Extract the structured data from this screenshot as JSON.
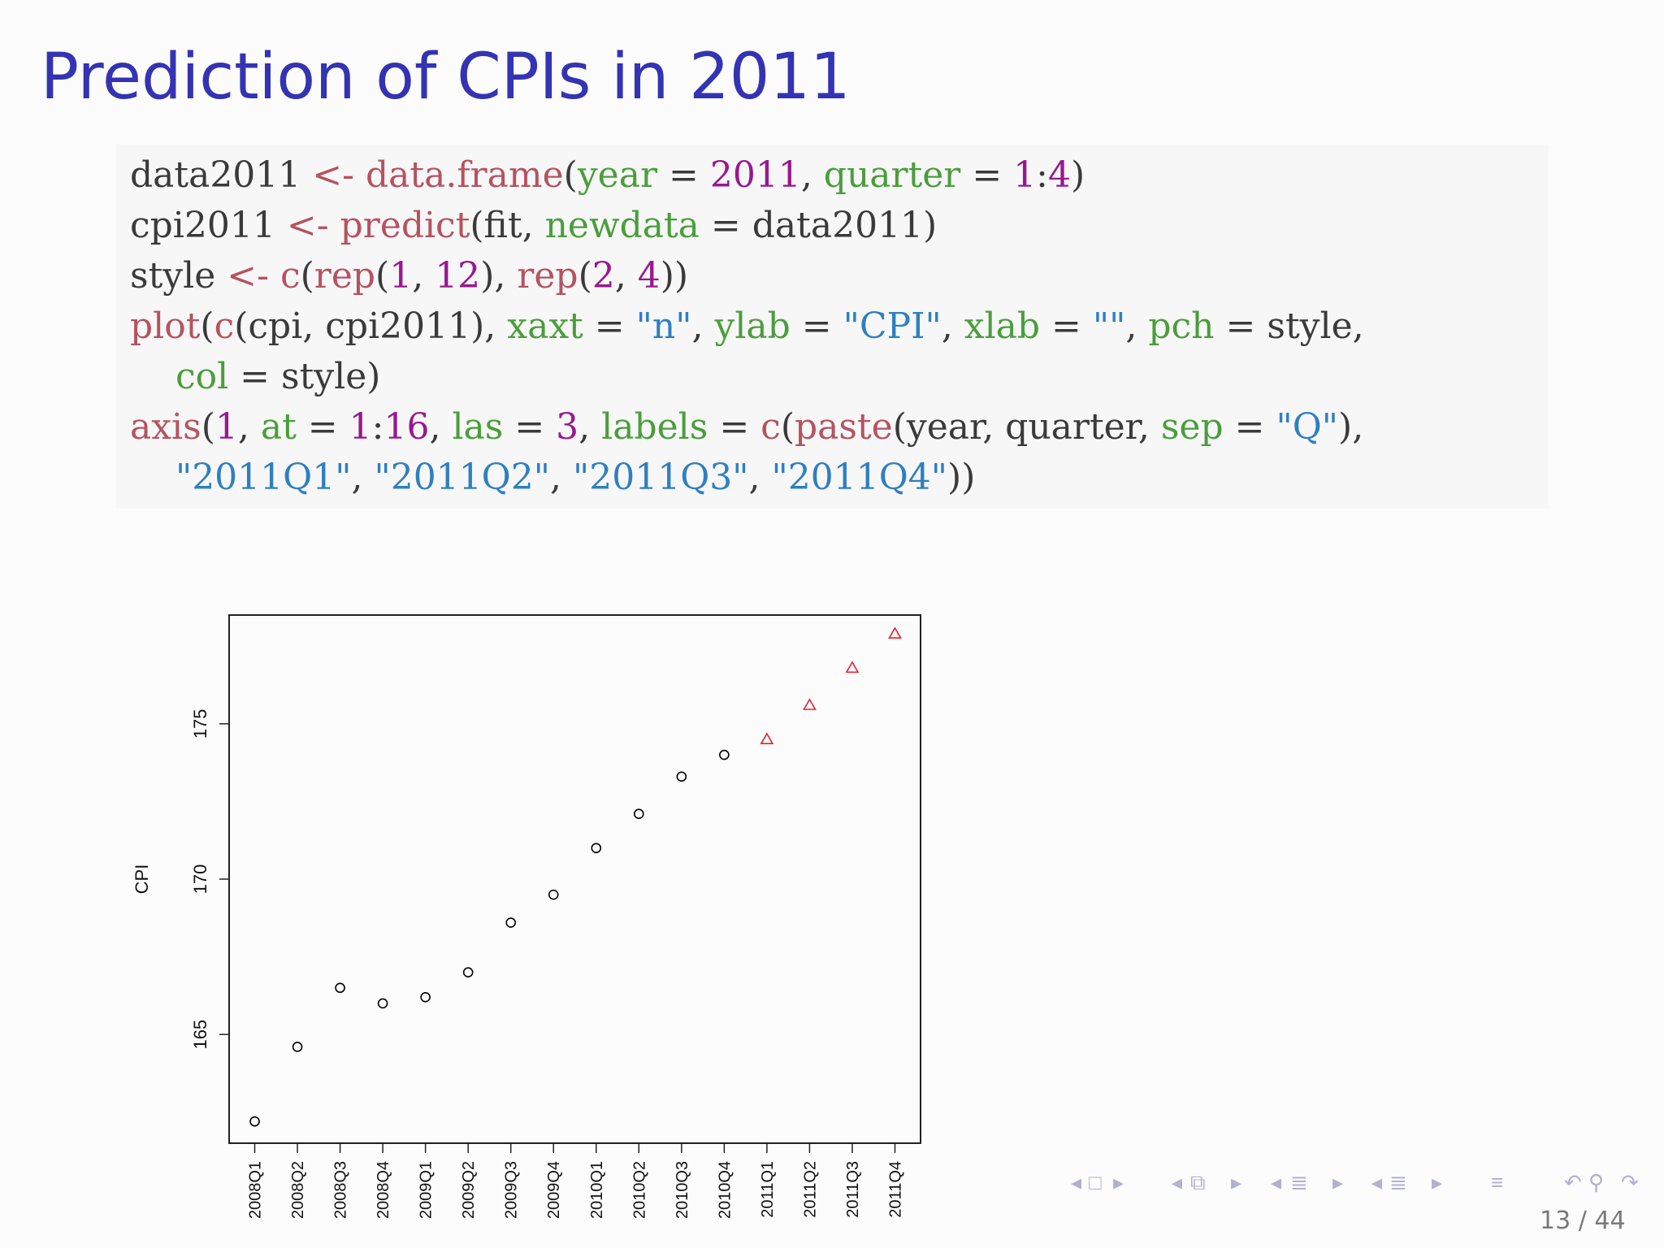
{
  "slide": {
    "title": "Prediction of CPIs in 2011",
    "page_counter": "13 / 44"
  },
  "code": {
    "lines": [
      [
        [
          "data2011 ",
          "txt"
        ],
        [
          "<-",
          "fn"
        ],
        [
          " ",
          "txt"
        ],
        [
          "data.frame",
          "fn"
        ],
        [
          "(",
          "txt"
        ],
        [
          "year",
          "arg"
        ],
        [
          " = ",
          "txt"
        ],
        [
          "2011",
          "num"
        ],
        [
          ", ",
          "txt"
        ],
        [
          "quarter",
          "arg"
        ],
        [
          " = ",
          "txt"
        ],
        [
          "1",
          "num"
        ],
        [
          ":",
          "txt"
        ],
        [
          "4",
          "num"
        ],
        [
          ")",
          "txt"
        ]
      ],
      [
        [
          "cpi2011 ",
          "txt"
        ],
        [
          "<-",
          "fn"
        ],
        [
          " ",
          "txt"
        ],
        [
          "predict",
          "fn"
        ],
        [
          "(fit, ",
          "txt"
        ],
        [
          "newdata",
          "arg"
        ],
        [
          " = data2011)",
          "txt"
        ]
      ],
      [
        [
          "style ",
          "txt"
        ],
        [
          "<-",
          "fn"
        ],
        [
          " ",
          "txt"
        ],
        [
          "c",
          "fn"
        ],
        [
          "(",
          "txt"
        ],
        [
          "rep",
          "fn"
        ],
        [
          "(",
          "txt"
        ],
        [
          "1",
          "num"
        ],
        [
          ", ",
          "txt"
        ],
        [
          "12",
          "num"
        ],
        [
          "), ",
          "txt"
        ],
        [
          "rep",
          "fn"
        ],
        [
          "(",
          "txt"
        ],
        [
          "2",
          "num"
        ],
        [
          ", ",
          "txt"
        ],
        [
          "4",
          "num"
        ],
        [
          "))",
          "txt"
        ]
      ],
      [
        [
          "plot",
          "fn"
        ],
        [
          "(",
          "txt"
        ],
        [
          "c",
          "fn"
        ],
        [
          "(cpi, cpi2011), ",
          "txt"
        ],
        [
          "xaxt",
          "arg"
        ],
        [
          " = ",
          "txt"
        ],
        [
          "\"n\"",
          "str"
        ],
        [
          ", ",
          "txt"
        ],
        [
          "ylab",
          "arg"
        ],
        [
          " = ",
          "txt"
        ],
        [
          "\"CPI\"",
          "str"
        ],
        [
          ", ",
          "txt"
        ],
        [
          "xlab",
          "arg"
        ],
        [
          " = ",
          "txt"
        ],
        [
          "\"\"",
          "str"
        ],
        [
          ", ",
          "txt"
        ],
        [
          "pch",
          "arg"
        ],
        [
          " = style,",
          "txt"
        ]
      ],
      [
        [
          "    ",
          "txt"
        ],
        [
          "col",
          "arg"
        ],
        [
          " = style)",
          "txt"
        ]
      ],
      [
        [
          "axis",
          "fn"
        ],
        [
          "(",
          "txt"
        ],
        [
          "1",
          "num"
        ],
        [
          ", ",
          "txt"
        ],
        [
          "at",
          "arg"
        ],
        [
          " = ",
          "txt"
        ],
        [
          "1",
          "num"
        ],
        [
          ":",
          "txt"
        ],
        [
          "16",
          "num"
        ],
        [
          ", ",
          "txt"
        ],
        [
          "las",
          "arg"
        ],
        [
          " = ",
          "txt"
        ],
        [
          "3",
          "num"
        ],
        [
          ", ",
          "txt"
        ],
        [
          "labels",
          "arg"
        ],
        [
          " = ",
          "txt"
        ],
        [
          "c",
          "fn"
        ],
        [
          "(",
          "txt"
        ],
        [
          "paste",
          "fn"
        ],
        [
          "(year, quarter, ",
          "txt"
        ],
        [
          "sep",
          "arg"
        ],
        [
          " = ",
          "txt"
        ],
        [
          "\"Q\"",
          "str"
        ],
        [
          "),",
          "txt"
        ]
      ],
      [
        [
          "    ",
          "txt"
        ],
        [
          "\"2011Q1\"",
          "str"
        ],
        [
          ", ",
          "txt"
        ],
        [
          "\"2011Q2\"",
          "str"
        ],
        [
          ", ",
          "txt"
        ],
        [
          "\"2011Q3\"",
          "str"
        ],
        [
          ", ",
          "txt"
        ],
        [
          "\"2011Q4\"",
          "str"
        ],
        [
          "))",
          "txt"
        ]
      ]
    ],
    "token_colors": {
      "fn": "#b5535f",
      "arg": "#4a9e3a",
      "num": "#98188f",
      "str": "#2e7fc1",
      "txt": "#3a3a3a"
    }
  },
  "chart_data": {
    "type": "scatter",
    "ylabel": "CPI",
    "xlabel": "",
    "ylim": [
      161.5,
      178.5
    ],
    "yticks": [
      165,
      170,
      175
    ],
    "categories": [
      "2008Q1",
      "2008Q2",
      "2008Q3",
      "2008Q4",
      "2009Q1",
      "2009Q2",
      "2009Q3",
      "2009Q4",
      "2010Q1",
      "2010Q2",
      "2010Q3",
      "2010Q4",
      "2011Q1",
      "2011Q2",
      "2011Q3",
      "2011Q4"
    ],
    "series": [
      {
        "marker": "circle",
        "color": "#000000",
        "x": [
          1,
          2,
          3,
          4,
          5,
          6,
          7,
          8,
          9,
          10,
          11,
          12
        ],
        "values": [
          162.2,
          164.6,
          166.5,
          166.0,
          166.2,
          167.0,
          168.6,
          169.5,
          171.0,
          172.1,
          173.3,
          174.0
        ]
      },
      {
        "marker": "triangle",
        "color": "#e8202f",
        "x": [
          13,
          14,
          15,
          16
        ],
        "values": [
          174.5,
          175.6,
          176.8,
          177.9
        ]
      }
    ]
  },
  "nav": {
    "color": "#b0b0d0",
    "icons": [
      "arrow-left",
      "frame",
      "arrow-right",
      "arrow-left",
      "subsection",
      "arrow-right",
      "arrow-left",
      "section",
      "arrow-right",
      "arrow-left",
      "section-list",
      "arrow-right",
      "align",
      "search-back",
      "search",
      "search-forward"
    ]
  }
}
